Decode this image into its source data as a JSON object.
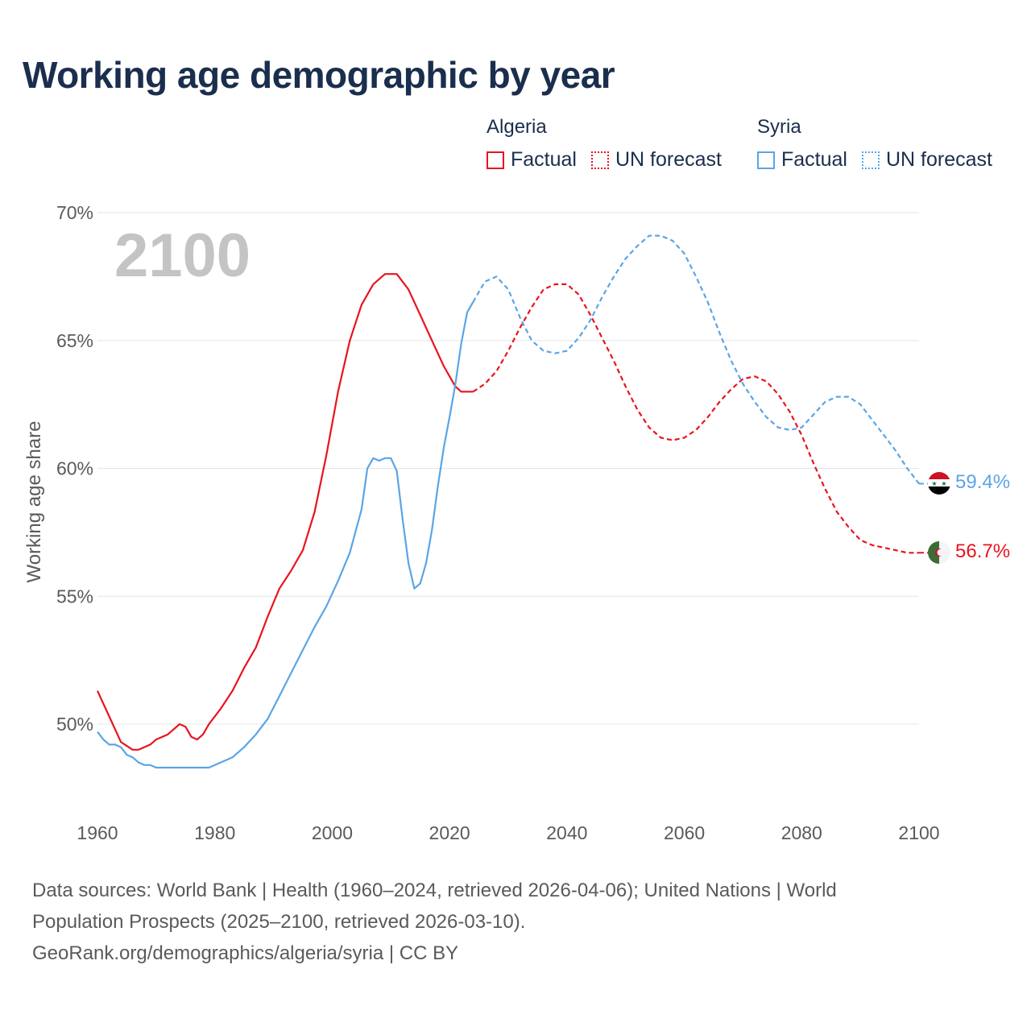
{
  "title": "Working age demographic by year",
  "legend": {
    "groups": [
      {
        "country": "Algeria",
        "factual_label": "Factual",
        "forecast_label": "UN forecast",
        "color": "#e8141e"
      },
      {
        "country": "Syria",
        "factual_label": "Factual",
        "forecast_label": "UN forecast",
        "color": "#5aa5e6"
      }
    ]
  },
  "year_label": "2100",
  "end_labels": {
    "syria": "59.4%",
    "algeria": "56.7%"
  },
  "footer": {
    "line1": "Data sources: World Bank | Health (1960–2024, retrieved 2026-04-06); United Nations | World",
    "line2": "Population Prospects (2025–2100, retrieved 2026-03-10).",
    "line3": "GeoRank.org/demographics/algeria/syria | CC BY"
  },
  "chart_data": {
    "type": "line",
    "title": "Working age demographic by year",
    "ylabel": "Working age share",
    "xlabel": "",
    "xlim": [
      1960,
      2100
    ],
    "ylim": [
      46.5,
      70
    ],
    "x_ticks": [
      1960,
      1980,
      2000,
      2020,
      2040,
      2060,
      2080,
      2100
    ],
    "y_ticks": [
      50,
      55,
      60,
      65,
      70
    ],
    "y_tick_labels": [
      "50%",
      "55%",
      "60%",
      "65%",
      "70%"
    ],
    "gridlines": true,
    "series": [
      {
        "name": "Algeria",
        "color": "#e8141e",
        "factual_range": [
          1960,
          2024
        ],
        "forecast_range": [
          2024,
          2100
        ],
        "points": [
          [
            1960,
            51.3
          ],
          [
            1962,
            50.3
          ],
          [
            1964,
            49.3
          ],
          [
            1966,
            49.0
          ],
          [
            1967,
            49.0
          ],
          [
            1969,
            49.2
          ],
          [
            1970,
            49.4
          ],
          [
            1972,
            49.6
          ],
          [
            1974,
            50.0
          ],
          [
            1975,
            49.9
          ],
          [
            1976,
            49.5
          ],
          [
            1977,
            49.4
          ],
          [
            1978,
            49.6
          ],
          [
            1979,
            50.0
          ],
          [
            1981,
            50.6
          ],
          [
            1983,
            51.3
          ],
          [
            1985,
            52.2
          ],
          [
            1987,
            53.0
          ],
          [
            1989,
            54.2
          ],
          [
            1991,
            55.3
          ],
          [
            1993,
            56.0
          ],
          [
            1995,
            56.8
          ],
          [
            1997,
            58.3
          ],
          [
            1999,
            60.5
          ],
          [
            2001,
            63.0
          ],
          [
            2003,
            65.0
          ],
          [
            2005,
            66.4
          ],
          [
            2007,
            67.2
          ],
          [
            2009,
            67.6
          ],
          [
            2011,
            67.6
          ],
          [
            2013,
            67.0
          ],
          [
            2015,
            66.0
          ],
          [
            2017,
            65.0
          ],
          [
            2019,
            64.0
          ],
          [
            2021,
            63.2
          ],
          [
            2022,
            63.0
          ],
          [
            2023,
            63.0
          ],
          [
            2024,
            63.0
          ],
          [
            2026,
            63.3
          ],
          [
            2028,
            63.8
          ],
          [
            2030,
            64.6
          ],
          [
            2032,
            65.5
          ],
          [
            2034,
            66.3
          ],
          [
            2036,
            67.0
          ],
          [
            2038,
            67.2
          ],
          [
            2040,
            67.2
          ],
          [
            2042,
            66.8
          ],
          [
            2044,
            66.0
          ],
          [
            2046,
            65.1
          ],
          [
            2048,
            64.2
          ],
          [
            2050,
            63.2
          ],
          [
            2052,
            62.3
          ],
          [
            2054,
            61.6
          ],
          [
            2056,
            61.2
          ],
          [
            2058,
            61.1
          ],
          [
            2060,
            61.2
          ],
          [
            2062,
            61.5
          ],
          [
            2064,
            62.0
          ],
          [
            2066,
            62.6
          ],
          [
            2068,
            63.1
          ],
          [
            2070,
            63.5
          ],
          [
            2072,
            63.6
          ],
          [
            2074,
            63.4
          ],
          [
            2076,
            62.9
          ],
          [
            2078,
            62.2
          ],
          [
            2080,
            61.3
          ],
          [
            2082,
            60.2
          ],
          [
            2084,
            59.2
          ],
          [
            2086,
            58.3
          ],
          [
            2088,
            57.7
          ],
          [
            2090,
            57.2
          ],
          [
            2092,
            57.0
          ],
          [
            2094,
            56.9
          ],
          [
            2096,
            56.8
          ],
          [
            2098,
            56.7
          ],
          [
            2100,
            56.7
          ]
        ]
      },
      {
        "name": "Syria",
        "color": "#5aa5e6",
        "factual_range": [
          1960,
          2024
        ],
        "forecast_range": [
          2024,
          2100
        ],
        "points": [
          [
            1960,
            49.7
          ],
          [
            1961,
            49.4
          ],
          [
            1962,
            49.2
          ],
          [
            1963,
            49.2
          ],
          [
            1964,
            49.1
          ],
          [
            1965,
            48.8
          ],
          [
            1966,
            48.7
          ],
          [
            1967,
            48.5
          ],
          [
            1968,
            48.4
          ],
          [
            1969,
            48.4
          ],
          [
            1970,
            48.3
          ],
          [
            1972,
            48.3
          ],
          [
            1974,
            48.3
          ],
          [
            1976,
            48.3
          ],
          [
            1978,
            48.3
          ],
          [
            1979,
            48.3
          ],
          [
            1981,
            48.5
          ],
          [
            1983,
            48.7
          ],
          [
            1985,
            49.1
          ],
          [
            1987,
            49.6
          ],
          [
            1989,
            50.2
          ],
          [
            1991,
            51.1
          ],
          [
            1993,
            52.0
          ],
          [
            1995,
            52.9
          ],
          [
            1997,
            53.8
          ],
          [
            1999,
            54.6
          ],
          [
            2001,
            55.6
          ],
          [
            2003,
            56.7
          ],
          [
            2005,
            58.4
          ],
          [
            2006,
            60.0
          ],
          [
            2007,
            60.4
          ],
          [
            2008,
            60.3
          ],
          [
            2009,
            60.4
          ],
          [
            2010,
            60.4
          ],
          [
            2011,
            59.9
          ],
          [
            2012,
            58.0
          ],
          [
            2013,
            56.3
          ],
          [
            2014,
            55.3
          ],
          [
            2015,
            55.5
          ],
          [
            2016,
            56.3
          ],
          [
            2017,
            57.6
          ],
          [
            2018,
            59.3
          ],
          [
            2019,
            60.8
          ],
          [
            2020,
            62.0
          ],
          [
            2021,
            63.3
          ],
          [
            2022,
            64.9
          ],
          [
            2023,
            66.1
          ],
          [
            2024,
            66.5
          ],
          [
            2026,
            67.3
          ],
          [
            2028,
            67.5
          ],
          [
            2030,
            67.0
          ],
          [
            2032,
            65.9
          ],
          [
            2034,
            65.0
          ],
          [
            2036,
            64.6
          ],
          [
            2038,
            64.5
          ],
          [
            2040,
            64.6
          ],
          [
            2042,
            65.1
          ],
          [
            2044,
            65.8
          ],
          [
            2046,
            66.7
          ],
          [
            2048,
            67.5
          ],
          [
            2050,
            68.2
          ],
          [
            2052,
            68.7
          ],
          [
            2054,
            69.1
          ],
          [
            2056,
            69.1
          ],
          [
            2058,
            68.9
          ],
          [
            2060,
            68.4
          ],
          [
            2062,
            67.5
          ],
          [
            2064,
            66.5
          ],
          [
            2066,
            65.3
          ],
          [
            2068,
            64.2
          ],
          [
            2070,
            63.3
          ],
          [
            2072,
            62.6
          ],
          [
            2074,
            62.0
          ],
          [
            2076,
            61.6
          ],
          [
            2078,
            61.5
          ],
          [
            2080,
            61.6
          ],
          [
            2082,
            62.1
          ],
          [
            2084,
            62.6
          ],
          [
            2086,
            62.8
          ],
          [
            2088,
            62.8
          ],
          [
            2090,
            62.5
          ],
          [
            2092,
            61.9
          ],
          [
            2094,
            61.3
          ],
          [
            2096,
            60.7
          ],
          [
            2098,
            60.0
          ],
          [
            2100,
            59.4
          ]
        ]
      }
    ]
  }
}
